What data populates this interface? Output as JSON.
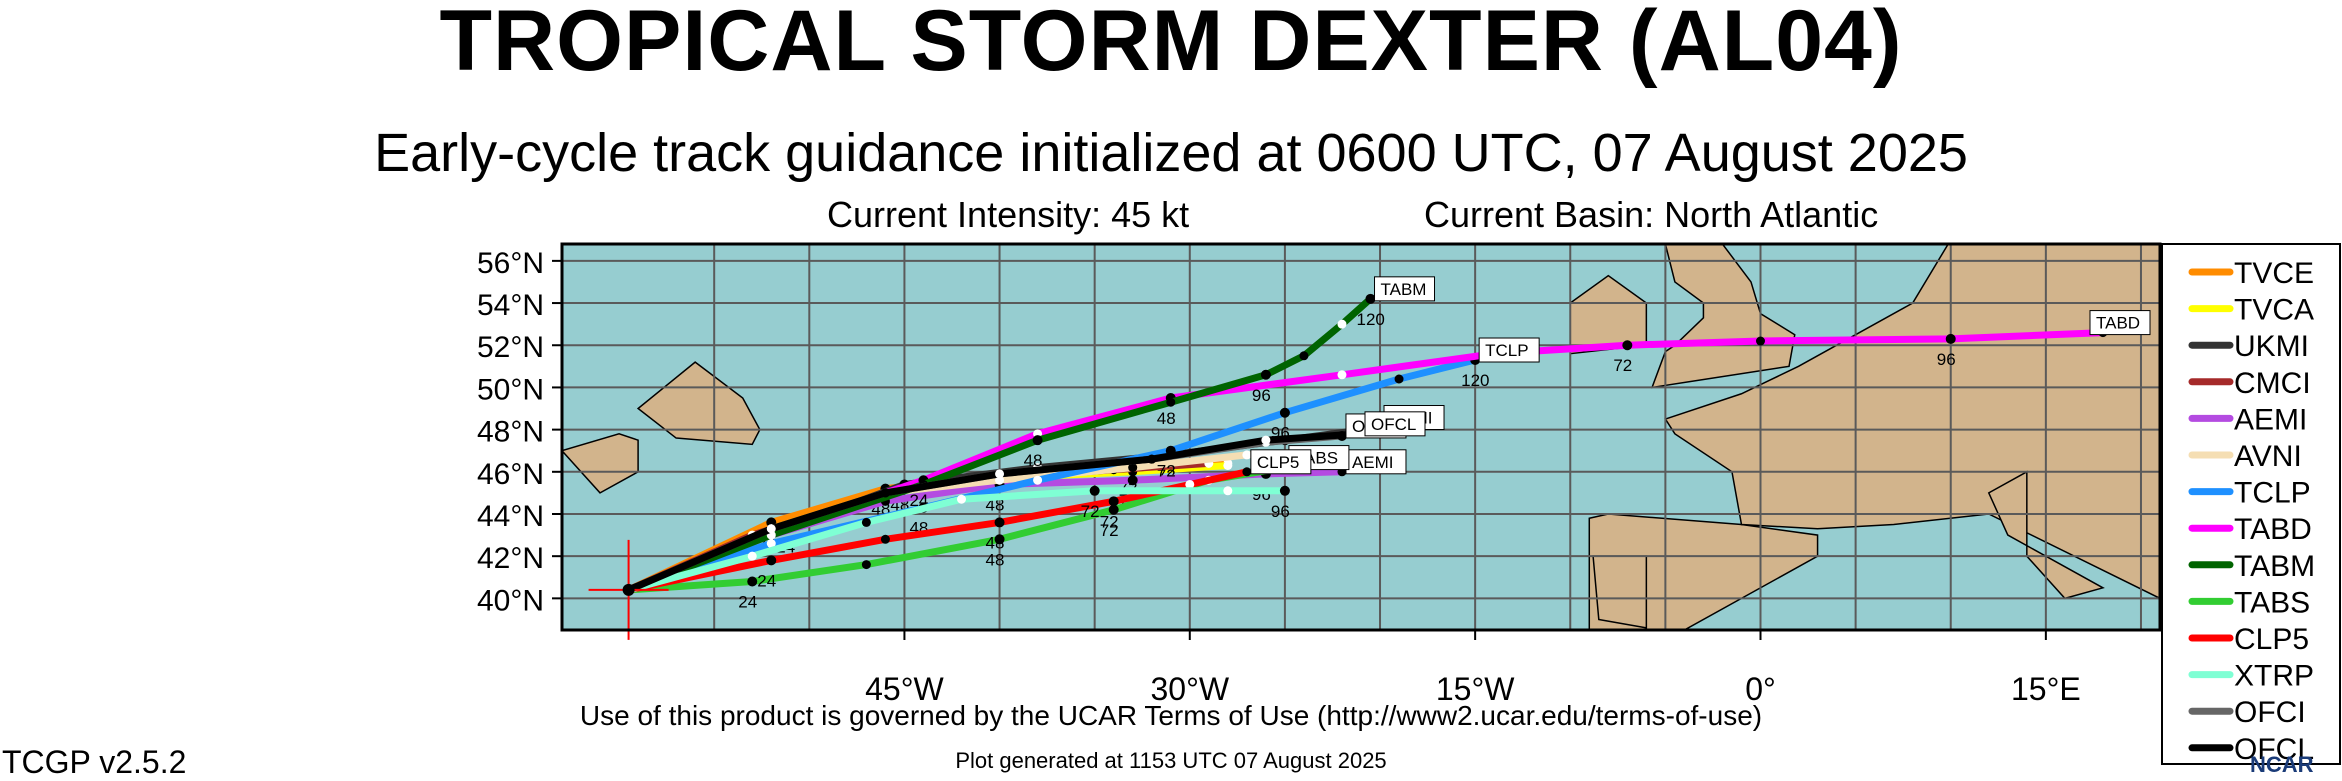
{
  "header": {
    "title": "TROPICAL STORM DEXTER (AL04)",
    "subtitle": "Early-cycle track guidance initialized at 0600 UTC, 07 August 2025",
    "current_intensity": "Current Intensity: 45 kt",
    "current_basin": "Current Basin: North Atlantic"
  },
  "footer": {
    "terms": "Use of this product is governed by the UCAR Terms of Use (http://www2.ucar.edu/terms-of-use)",
    "generated": "Plot generated at 1153 UTC   07 August 2025",
    "version": "TCGP v2.5.2",
    "logo_text": "NCAR"
  },
  "colors": {
    "ocean": "#96cdd0",
    "land": "#d2b48c",
    "grid": "#5a5a5a",
    "frame": "#000000"
  },
  "chart_data": {
    "type": "line",
    "title": "TROPICAL STORM DEXTER (AL04)",
    "subtitle": "Early-cycle track guidance initialized at 0600 UTC, 07 August 2025",
    "xlim": [
      -63,
      21
    ],
    "ylim": [
      38.5,
      56.8
    ],
    "x_ticks": [
      -45,
      -30,
      -15,
      0,
      15
    ],
    "x_tick_labels": [
      "45°W",
      "30°W",
      "15°W",
      "0°",
      "15°E"
    ],
    "y_ticks": [
      40,
      42,
      44,
      46,
      48,
      50,
      52,
      54,
      56
    ],
    "y_tick_labels": [
      "40°N",
      "42°N",
      "44°N",
      "46°N",
      "48°N",
      "50°N",
      "52°N",
      "54°N",
      "56°N"
    ],
    "grid": true,
    "legend_position": "right",
    "initial_position": [
      -59.5,
      40.4
    ],
    "series": [
      {
        "name": "TVCE",
        "color": "#ff8c00",
        "points": [
          [
            -59.5,
            40.4
          ],
          [
            -52,
            43.6
          ],
          [
            -46,
            45.2
          ],
          [
            -40,
            45.8
          ],
          [
            -33,
            46.2
          ],
          [
            -28,
            46.4
          ]
        ],
        "labels": [
          [
            -52,
            43.6,
            "24"
          ],
          [
            -46,
            45.2,
            "48"
          ],
          [
            -33,
            46.2,
            "72"
          ]
        ],
        "end_label": ""
      },
      {
        "name": "TVCA",
        "color": "#ffff00",
        "points": [
          [
            -59.5,
            40.4
          ],
          [
            -52,
            43.3
          ],
          [
            -46,
            45.0
          ],
          [
            -40,
            45.7
          ],
          [
            -33,
            46.0
          ],
          [
            -28,
            46.3
          ]
        ],
        "labels": [],
        "end_label": ""
      },
      {
        "name": "UKMI",
        "color": "#333333",
        "points": [
          [
            -59.5,
            40.4
          ],
          [
            -51,
            43.4
          ],
          [
            -45,
            45.4
          ],
          [
            -38,
            46.2
          ],
          [
            -31,
            46.8
          ],
          [
            -25,
            47.5
          ],
          [
            -20,
            48.1
          ]
        ],
        "labels": [
          [
            -51,
            43.4,
            "24"
          ],
          [
            -45,
            45.4,
            "48"
          ],
          [
            -31,
            46.8,
            "72"
          ],
          [
            -25,
            47.5,
            "96"
          ]
        ],
        "end_label": "UKMI"
      },
      {
        "name": "CMCI",
        "color": "#a52a2a",
        "points": [
          [
            -59.5,
            40.4
          ],
          [
            -53,
            43.0
          ],
          [
            -46,
            45.0
          ],
          [
            -40,
            45.7
          ],
          [
            -34,
            46.1
          ],
          [
            -29,
            46.4
          ]
        ],
        "labels": [],
        "end_label": ""
      },
      {
        "name": "AEMI",
        "color": "#b44be1",
        "points": [
          [
            -59.5,
            40.4
          ],
          [
            -52,
            43.0
          ],
          [
            -46,
            44.6
          ],
          [
            -40,
            45.4
          ],
          [
            -33,
            45.6
          ],
          [
            -26,
            45.9
          ],
          [
            -22,
            46.0
          ]
        ],
        "labels": [
          [
            -40,
            45.4,
            "48"
          ],
          [
            -33,
            45.6,
            "72"
          ],
          [
            -26,
            45.9,
            "96"
          ]
        ],
        "end_label": "AEMI"
      },
      {
        "name": "AVNI",
        "color": "#f5deb3",
        "points": [
          [
            -59.5,
            40.4
          ],
          [
            -52,
            43.2
          ],
          [
            -46,
            45.0
          ],
          [
            -40,
            45.6
          ],
          [
            -33,
            46.2
          ],
          [
            -27,
            46.8
          ],
          [
            -23,
            47.0
          ]
        ],
        "labels": [],
        "end_label": ""
      },
      {
        "name": "TCLP",
        "color": "#1e90ff",
        "points": [
          [
            -59.5,
            40.4
          ],
          [
            -52,
            42.6
          ],
          [
            -44,
            44.3
          ],
          [
            -38,
            45.6
          ],
          [
            -31,
            47.0
          ],
          [
            -25,
            48.8
          ],
          [
            -19,
            50.4
          ],
          [
            -15,
            51.3
          ]
        ],
        "labels": [
          [
            -44,
            44.3,
            "48"
          ],
          [
            -31,
            47.0,
            "72"
          ],
          [
            -25,
            48.8,
            "96"
          ],
          [
            -15,
            51.3,
            "120"
          ]
        ],
        "end_label": "TCLP"
      },
      {
        "name": "TABD",
        "color": "#ff00ff",
        "points": [
          [
            -59.5,
            40.4
          ],
          [
            -52,
            43.2
          ],
          [
            -44,
            45.6
          ],
          [
            -38,
            47.8
          ],
          [
            -31,
            49.5
          ],
          [
            -22,
            50.6
          ],
          [
            -14,
            51.6
          ],
          [
            -7,
            52.0
          ],
          [
            0,
            52.2
          ],
          [
            10,
            52.3
          ],
          [
            18,
            52.6
          ]
        ],
        "labels": [
          [
            -44,
            45.6,
            "24"
          ],
          [
            -31,
            49.5,
            "48"
          ],
          [
            -7,
            52.0,
            "72"
          ],
          [
            10,
            52.3,
            "96"
          ]
        ],
        "end_label": "TABD"
      },
      {
        "name": "TABM",
        "color": "#006400",
        "points": [
          [
            -59.5,
            40.4
          ],
          [
            -52,
            43.0
          ],
          [
            -44,
            45.4
          ],
          [
            -38,
            47.5
          ],
          [
            -31,
            49.3
          ],
          [
            -26,
            50.6
          ],
          [
            -24,
            51.5
          ],
          [
            -22,
            53.0
          ],
          [
            -20.5,
            54.2
          ]
        ],
        "labels": [
          [
            -38,
            47.5,
            "48"
          ],
          [
            -26,
            50.6,
            "96"
          ],
          [
            -20.5,
            54.2,
            "120"
          ]
        ],
        "end_label": "TABM"
      },
      {
        "name": "TABS",
        "color": "#32cd32",
        "points": [
          [
            -59.5,
            40.4
          ],
          [
            -53,
            40.8
          ],
          [
            -47,
            41.6
          ],
          [
            -40,
            42.8
          ],
          [
            -34,
            44.2
          ],
          [
            -29,
            45.6
          ],
          [
            -25,
            46.2
          ]
        ],
        "labels": [
          [
            -53,
            40.8,
            "24"
          ],
          [
            -40,
            42.8,
            "48"
          ],
          [
            -34,
            44.2,
            "72"
          ]
        ],
        "end_label": "TABS"
      },
      {
        "name": "CLP5",
        "color": "#ff0000",
        "points": [
          [
            -59.5,
            40.4
          ],
          [
            -52,
            41.8
          ],
          [
            -46,
            42.8
          ],
          [
            -40,
            43.6
          ],
          [
            -34,
            44.6
          ],
          [
            -30,
            45.4
          ],
          [
            -27,
            46.0
          ]
        ],
        "labels": [
          [
            -52,
            41.8,
            "24"
          ],
          [
            -40,
            43.6,
            "48"
          ],
          [
            -34,
            44.6,
            "72"
          ]
        ],
        "end_label": "CLP5"
      },
      {
        "name": "XTRP",
        "color": "#7fffd4",
        "points": [
          [
            -59.5,
            40.4
          ],
          [
            -53,
            42.0
          ],
          [
            -47,
            43.6
          ],
          [
            -42,
            44.7
          ],
          [
            -35,
            45.1
          ],
          [
            -28,
            45.1
          ],
          [
            -25,
            45.1
          ]
        ],
        "labels": [
          [
            -35,
            45.1,
            "72"
          ],
          [
            -25,
            45.1,
            "96"
          ]
        ],
        "end_label": ""
      },
      {
        "name": "OFCI",
        "color": "#666666",
        "points": [
          [
            -59.5,
            40.4
          ],
          [
            -52,
            43.3
          ],
          [
            -46,
            45.0
          ],
          [
            -40,
            45.9
          ],
          [
            -32,
            46.6
          ],
          [
            -26,
            47.4
          ],
          [
            -22,
            47.7
          ]
        ],
        "labels": [
          [
            -22,
            47.7,
            "96"
          ]
        ],
        "end_label": "OFCI"
      },
      {
        "name": "OFCL",
        "color": "#000000",
        "points": [
          [
            -59.5,
            40.4
          ],
          [
            -52,
            43.3
          ],
          [
            -46,
            45.0
          ],
          [
            -40,
            45.9
          ],
          [
            -32,
            46.6
          ],
          [
            -26,
            47.5
          ],
          [
            -21,
            47.8
          ]
        ],
        "labels": [],
        "end_label": "OFCL"
      }
    ]
  }
}
